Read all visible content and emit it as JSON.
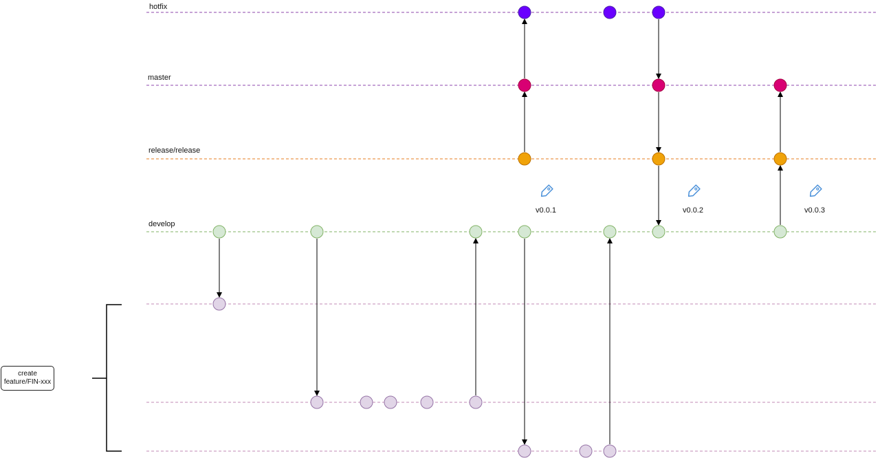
{
  "lanes": [
    {
      "id": "hotfix",
      "label": "hotfix",
      "color": "#8e44ad"
    },
    {
      "id": "master",
      "label": "master",
      "color": "#8e44ad"
    },
    {
      "id": "release",
      "label": "release/release",
      "color": "#e67e22"
    },
    {
      "id": "develop",
      "label": "develop",
      "color": "#82b366"
    },
    {
      "id": "feature1",
      "label": "",
      "color": "#c08ab5"
    },
    {
      "id": "feature2",
      "label": "",
      "color": "#c08ab5"
    },
    {
      "id": "feature3",
      "label": "",
      "color": "#c08ab5"
    }
  ],
  "node_styles": {
    "hotfix": {
      "fill": "#6a00ff",
      "stroke": "#4b1fa8"
    },
    "master": {
      "fill": "#d80073",
      "stroke": "#a50040"
    },
    "release": {
      "fill": "#f0a30a",
      "stroke": "#bd7000"
    },
    "develop": {
      "fill": "#d5e8d4",
      "stroke": "#82b366"
    },
    "feature": {
      "fill": "#e1d5e7",
      "stroke": "#9673a6"
    }
  },
  "tags": [
    {
      "label": "v0.0.1"
    },
    {
      "label": "v0.0.2"
    },
    {
      "label": "v0.0.3"
    }
  ],
  "note": {
    "line1": "create",
    "line2": "feature/FIN-xxx"
  },
  "icons": {
    "tag": "tag-icon"
  }
}
